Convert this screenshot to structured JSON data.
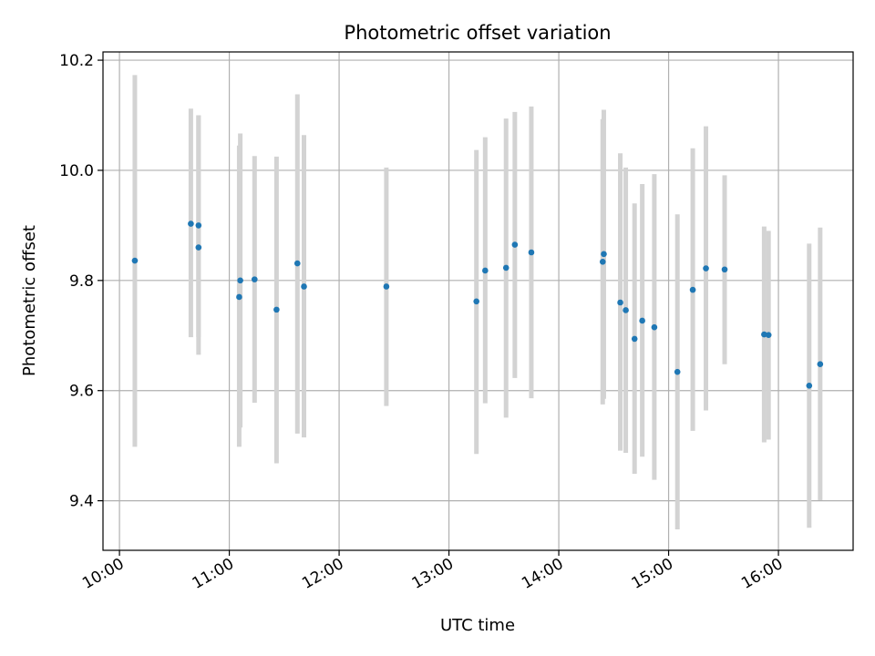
{
  "chart_data": {
    "type": "scatter",
    "title": "Photometric offset variation",
    "xlabel": "UTC time",
    "ylabel": "Photometric offset",
    "grid": true,
    "xlim_hours": [
      9.85,
      16.68
    ],
    "ylim": [
      9.31,
      10.215
    ],
    "x_ticks": [
      {
        "hour": 10,
        "label": "10:00"
      },
      {
        "hour": 11,
        "label": "11:00"
      },
      {
        "hour": 12,
        "label": "12:00"
      },
      {
        "hour": 13,
        "label": "13:00"
      },
      {
        "hour": 14,
        "label": "14:00"
      },
      {
        "hour": 15,
        "label": "15:00"
      },
      {
        "hour": 16,
        "label": "16:00"
      }
    ],
    "y_ticks": [
      {
        "value": 9.4,
        "label": "9.4"
      },
      {
        "value": 9.6,
        "label": "9.6"
      },
      {
        "value": 9.8,
        "label": "9.8"
      },
      {
        "value": 10.0,
        "label": "10.0"
      },
      {
        "value": 10.2,
        "label": "10.2"
      }
    ],
    "point_color": "#1f77b4",
    "errorbar_color": "#d3d3d3",
    "points": [
      {
        "t": 10.14,
        "y": 9.836,
        "lo": 9.498,
        "hi": 10.173
      },
      {
        "t": 10.65,
        "y": 9.903,
        "lo": 9.697,
        "hi": 10.112
      },
      {
        "t": 10.72,
        "y": 9.86,
        "lo": 9.697,
        "hi": 10.1
      },
      {
        "t": 10.72,
        "y": 9.9,
        "lo": 9.665,
        "hi": 10.1
      },
      {
        "t": 11.09,
        "y": 9.77,
        "lo": 9.498,
        "hi": 10.045
      },
      {
        "t": 11.1,
        "y": 9.8,
        "lo": 9.533,
        "hi": 10.067
      },
      {
        "t": 11.23,
        "y": 9.802,
        "lo": 9.578,
        "hi": 10.026
      },
      {
        "t": 11.43,
        "y": 9.747,
        "lo": 9.468,
        "hi": 10.025
      },
      {
        "t": 11.62,
        "y": 9.831,
        "lo": 9.522,
        "hi": 10.138
      },
      {
        "t": 11.68,
        "y": 9.789,
        "lo": 9.515,
        "hi": 10.064
      },
      {
        "t": 12.43,
        "y": 9.789,
        "lo": 9.572,
        "hi": 10.005
      },
      {
        "t": 13.25,
        "y": 9.762,
        "lo": 9.485,
        "hi": 10.037
      },
      {
        "t": 13.33,
        "y": 9.818,
        "lo": 9.577,
        "hi": 10.06
      },
      {
        "t": 13.52,
        "y": 9.823,
        "lo": 9.551,
        "hi": 10.094
      },
      {
        "t": 13.6,
        "y": 9.865,
        "lo": 9.623,
        "hi": 10.106
      },
      {
        "t": 13.75,
        "y": 9.851,
        "lo": 9.586,
        "hi": 10.116
      },
      {
        "t": 14.4,
        "y": 9.834,
        "lo": 9.575,
        "hi": 10.093
      },
      {
        "t": 14.41,
        "y": 9.848,
        "lo": 9.585,
        "hi": 10.11
      },
      {
        "t": 14.56,
        "y": 9.76,
        "lo": 9.491,
        "hi": 10.031
      },
      {
        "t": 14.61,
        "y": 9.746,
        "lo": 9.487,
        "hi": 10.005
      },
      {
        "t": 14.69,
        "y": 9.694,
        "lo": 9.449,
        "hi": 9.94
      },
      {
        "t": 14.76,
        "y": 9.727,
        "lo": 9.48,
        "hi": 9.975
      },
      {
        "t": 14.87,
        "y": 9.715,
        "lo": 9.438,
        "hi": 9.993
      },
      {
        "t": 15.08,
        "y": 9.634,
        "lo": 9.348,
        "hi": 9.92
      },
      {
        "t": 15.22,
        "y": 9.783,
        "lo": 9.527,
        "hi": 10.04
      },
      {
        "t": 15.34,
        "y": 9.822,
        "lo": 9.564,
        "hi": 10.08
      },
      {
        "t": 15.51,
        "y": 9.82,
        "lo": 9.648,
        "hi": 9.991
      },
      {
        "t": 15.87,
        "y": 9.702,
        "lo": 9.506,
        "hi": 9.898
      },
      {
        "t": 15.91,
        "y": 9.701,
        "lo": 9.511,
        "hi": 9.89
      },
      {
        "t": 16.28,
        "y": 9.609,
        "lo": 9.351,
        "hi": 9.867
      },
      {
        "t": 16.38,
        "y": 9.648,
        "lo": 9.401,
        "hi": 9.896
      }
    ]
  }
}
